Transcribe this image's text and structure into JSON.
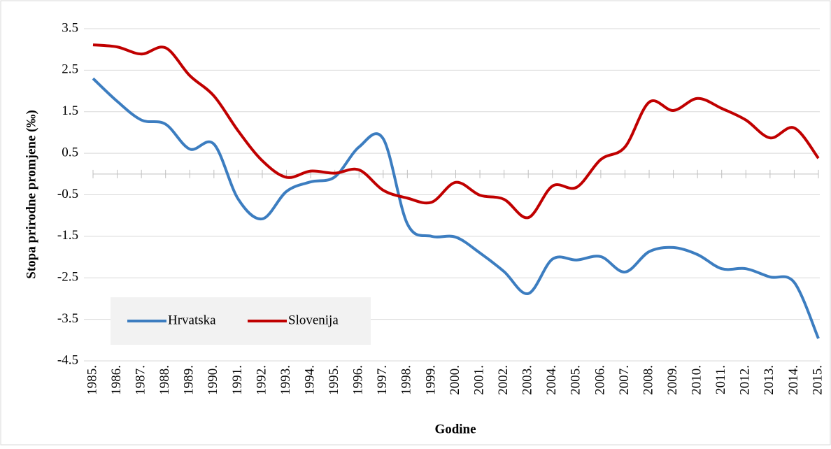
{
  "chart_data": {
    "type": "line",
    "x_label": "Godine",
    "y_label": "Stopa prirodne promjene (‰)",
    "categories": [
      "1985.",
      "1986.",
      "1987.",
      "1988.",
      "1989.",
      "1990.",
      "1991.",
      "1992.",
      "1993.",
      "1994.",
      "1995.",
      "1996.",
      "1997.",
      "1998.",
      "1999.",
      "2000.",
      "2001.",
      "2002.",
      "2003.",
      "2004.",
      "2005.",
      "2006.",
      "2007.",
      "2008.",
      "2009.",
      "2010.",
      "2011.",
      "2012.",
      "2013.",
      "2014.",
      "2015."
    ],
    "series": [
      {
        "name": "Hrvatska",
        "color": "#3c7dc0",
        "values": [
          2.3,
          1.75,
          1.3,
          1.2,
          0.6,
          0.72,
          -0.6,
          -1.08,
          -0.42,
          -0.19,
          -0.07,
          0.65,
          0.85,
          -1.2,
          -1.5,
          -1.52,
          -1.9,
          -2.35,
          -2.88,
          -2.05,
          -2.07,
          -1.99,
          -2.36,
          -1.87,
          -1.77,
          -1.94,
          -2.28,
          -2.28,
          -2.48,
          -2.61,
          -3.96
        ]
      },
      {
        "name": "Slovenija",
        "color": "#c00000",
        "values": [
          3.11,
          3.06,
          2.89,
          3.04,
          2.37,
          1.88,
          1.04,
          0.32,
          -0.08,
          0.07,
          0.02,
          0.1,
          -0.39,
          -0.58,
          -0.68,
          -0.2,
          -0.51,
          -0.61,
          -1.05,
          -0.29,
          -0.32,
          0.35,
          0.65,
          1.73,
          1.53,
          1.82,
          1.58,
          1.3,
          0.87,
          1.11,
          0.38
        ]
      }
    ],
    "ylim": [
      -4.5,
      3.5
    ],
    "yticks": [
      -4.5,
      -3.5,
      -2.5,
      -1.5,
      -0.5,
      0.5,
      1.5,
      2.5,
      3.5
    ],
    "grid": true,
    "legend": "lower left"
  }
}
